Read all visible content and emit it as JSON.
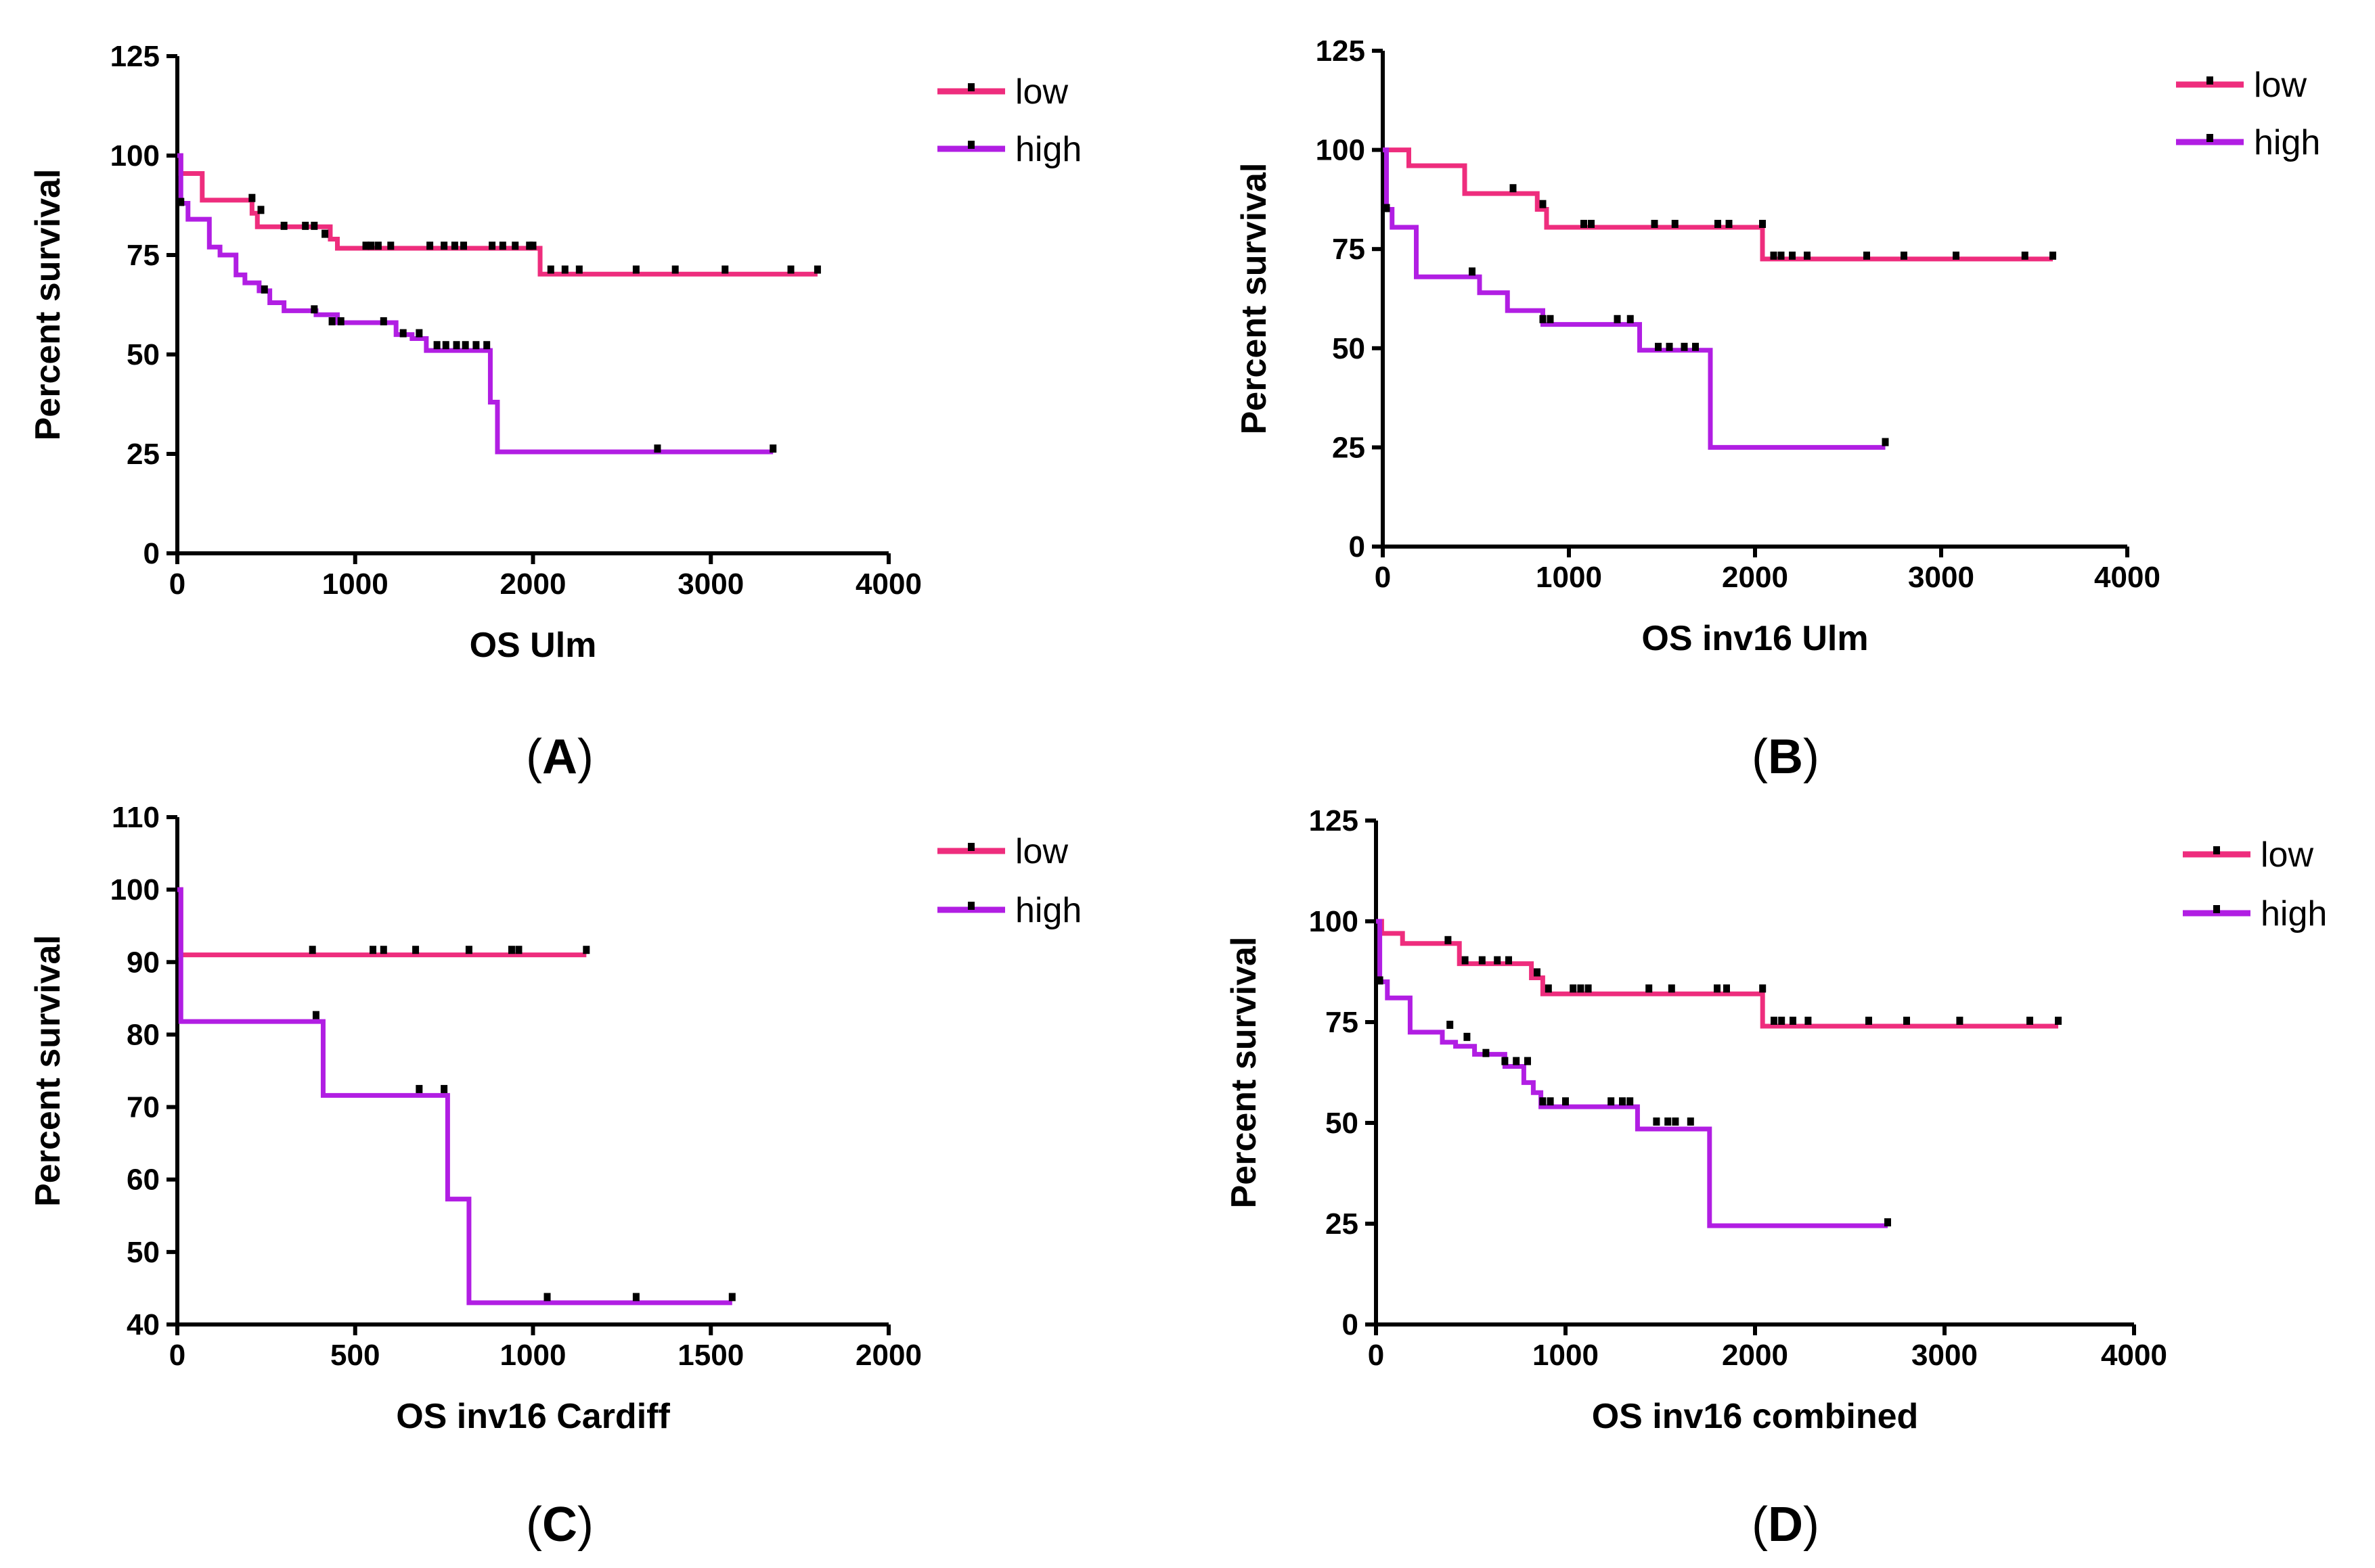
{
  "colors": {
    "low": "#ee2d7d",
    "high": "#b11ee3",
    "axis": "#000000",
    "censor": "#000000"
  },
  "chart_data": [
    {
      "type": "line",
      "panel": "A",
      "xlabel": "OS Ulm",
      "ylabel": "Percent survival",
      "xlim": [
        0,
        4000
      ],
      "ylim": [
        0,
        125
      ],
      "xticks": [
        0,
        1000,
        2000,
        3000,
        4000
      ],
      "yticks": [
        0,
        25,
        50,
        75,
        100,
        125
      ],
      "legend": {
        "placement": "top-right",
        "entries": [
          "low",
          "high"
        ]
      },
      "series": [
        {
          "name": "low",
          "steps": [
            [
              0,
              100
            ],
            [
              20,
              95.5
            ],
            [
              140,
              88.8
            ],
            [
              420,
              85.5
            ],
            [
              450,
              82.1
            ],
            [
              860,
              79.0
            ],
            [
              900,
              76.7
            ],
            [
              2040,
              70.2
            ],
            [
              3600,
              70.2
            ]
          ],
          "censored": [
            [
              420,
              89
            ],
            [
              470,
              86
            ],
            [
              600,
              82
            ],
            [
              720,
              82
            ],
            [
              770,
              82
            ],
            [
              830,
              80
            ],
            [
              1060,
              77
            ],
            [
              1090,
              77
            ],
            [
              1130,
              77
            ],
            [
              1200,
              77
            ],
            [
              1420,
              77
            ],
            [
              1500,
              77
            ],
            [
              1560,
              77
            ],
            [
              1610,
              77
            ],
            [
              1770,
              77
            ],
            [
              1830,
              77
            ],
            [
              1900,
              77
            ],
            [
              1980,
              77
            ],
            [
              2000,
              77
            ],
            [
              2100,
              71
            ],
            [
              2180,
              71
            ],
            [
              2260,
              71
            ],
            [
              2580,
              71
            ],
            [
              2800,
              71
            ],
            [
              3080,
              71
            ],
            [
              3450,
              71
            ],
            [
              3600,
              71
            ]
          ]
        },
        {
          "name": "high",
          "steps": [
            [
              0,
              100
            ],
            [
              20,
              88
            ],
            [
              60,
              84
            ],
            [
              180,
              77
            ],
            [
              240,
              75
            ],
            [
              330,
              70
            ],
            [
              380,
              68
            ],
            [
              460,
              66
            ],
            [
              520,
              63
            ],
            [
              600,
              61
            ],
            [
              780,
              60
            ],
            [
              900,
              58
            ],
            [
              1230,
              55
            ],
            [
              1320,
              54
            ],
            [
              1400,
              51
            ],
            [
              1760,
              38
            ],
            [
              1800,
              25.5
            ],
            [
              3350,
              25.5
            ]
          ],
          "censored": [
            [
              20,
              88
            ],
            [
              490,
              66
            ],
            [
              770,
              61
            ],
            [
              870,
              58
            ],
            [
              920,
              58
            ],
            [
              1160,
              58
            ],
            [
              1270,
              55
            ],
            [
              1360,
              55
            ],
            [
              1460,
              52
            ],
            [
              1510,
              52
            ],
            [
              1570,
              52
            ],
            [
              1620,
              52
            ],
            [
              1680,
              52
            ],
            [
              1740,
              52
            ],
            [
              2700,
              26
            ],
            [
              3350,
              26
            ]
          ]
        }
      ]
    },
    {
      "type": "line",
      "panel": "B",
      "xlabel": "OS inv16 Ulm",
      "ylabel": "Percent survival",
      "xlim": [
        0,
        4000
      ],
      "ylim": [
        0,
        125
      ],
      "xticks": [
        0,
        1000,
        2000,
        3000,
        4000
      ],
      "yticks": [
        0,
        25,
        50,
        75,
        100,
        125
      ],
      "legend": {
        "placement": "top-right",
        "entries": [
          "low",
          "high"
        ]
      },
      "series": [
        {
          "name": "low",
          "steps": [
            [
              0,
              100
            ],
            [
              140,
              96
            ],
            [
              440,
              89
            ],
            [
              830,
              85
            ],
            [
              880,
              80.5
            ],
            [
              2040,
              72.5
            ],
            [
              3600,
              72.5
            ]
          ],
          "censored": [
            [
              700,
              90
            ],
            [
              860,
              86
            ],
            [
              1080,
              81
            ],
            [
              1120,
              81
            ],
            [
              1460,
              81
            ],
            [
              1570,
              81
            ],
            [
              1800,
              81
            ],
            [
              1860,
              81
            ],
            [
              2040,
              81
            ],
            [
              2100,
              73
            ],
            [
              2140,
              73
            ],
            [
              2200,
              73
            ],
            [
              2280,
              73
            ],
            [
              2600,
              73
            ],
            [
              2800,
              73
            ],
            [
              3080,
              73
            ],
            [
              3450,
              73
            ],
            [
              3600,
              73
            ]
          ]
        },
        {
          "name": "high",
          "steps": [
            [
              0,
              100
            ],
            [
              20,
              85
            ],
            [
              50,
              80.5
            ],
            [
              180,
              68
            ],
            [
              520,
              64
            ],
            [
              670,
              59.5
            ],
            [
              860,
              56
            ],
            [
              1380,
              49.5
            ],
            [
              1760,
              25
            ],
            [
              2700,
              25
            ]
          ],
          "censored": [
            [
              20,
              85
            ],
            [
              480,
              69
            ],
            [
              860,
              57
            ],
            [
              900,
              57
            ],
            [
              1260,
              57
            ],
            [
              1330,
              57
            ],
            [
              1480,
              50
            ],
            [
              1540,
              50
            ],
            [
              1620,
              50
            ],
            [
              1680,
              50
            ],
            [
              2700,
              26
            ]
          ]
        }
      ]
    },
    {
      "type": "line",
      "panel": "C",
      "xlabel": "OS inv16 Cardiff",
      "ylabel": "Percent survival",
      "xlim": [
        0,
        2000
      ],
      "ylim": [
        40,
        110
      ],
      "xticks": [
        0,
        500,
        1000,
        1500,
        2000
      ],
      "yticks": [
        40,
        50,
        60,
        70,
        80,
        90,
        100,
        110
      ],
      "legend": {
        "placement": "top-right",
        "entries": [
          "low",
          "high"
        ]
      },
      "series": [
        {
          "name": "low",
          "steps": [
            [
              0,
              100
            ],
            [
              10,
              91
            ],
            [
              1150,
              91
            ]
          ],
          "censored": [
            [
              380,
              91.5
            ],
            [
              550,
              91.5
            ],
            [
              580,
              91.5
            ],
            [
              670,
              91.5
            ],
            [
              820,
              91.5
            ],
            [
              940,
              91.5
            ],
            [
              960,
              91.5
            ],
            [
              1150,
              91.5
            ]
          ]
        },
        {
          "name": "high",
          "steps": [
            [
              0,
              100
            ],
            [
              10,
              81.8
            ],
            [
              410,
              71.6
            ],
            [
              760,
              57.3
            ],
            [
              820,
              43
            ],
            [
              1560,
              43
            ]
          ],
          "censored": [
            [
              390,
              82.5
            ],
            [
              680,
              72.3
            ],
            [
              750,
              72.3
            ],
            [
              1040,
              43.6
            ],
            [
              1290,
              43.6
            ],
            [
              1560,
              43.6
            ]
          ]
        }
      ]
    },
    {
      "type": "line",
      "panel": "D",
      "xlabel": "OS inv16 combined",
      "ylabel": "Percent survival",
      "xlim": [
        0,
        4000
      ],
      "ylim": [
        0,
        125
      ],
      "xticks": [
        0,
        1000,
        2000,
        3000,
        4000
      ],
      "yticks": [
        0,
        25,
        50,
        75,
        100,
        125
      ],
      "legend": {
        "placement": "top-right",
        "entries": [
          "low",
          "high"
        ]
      },
      "series": [
        {
          "name": "low",
          "steps": [
            [
              0,
              100
            ],
            [
              30,
              97
            ],
            [
              140,
              94.5
            ],
            [
              440,
              89.5
            ],
            [
              820,
              86
            ],
            [
              880,
              82
            ],
            [
              2040,
              74
            ],
            [
              3600,
              74
            ]
          ],
          "censored": [
            [
              380,
              95
            ],
            [
              470,
              90
            ],
            [
              560,
              90
            ],
            [
              640,
              90
            ],
            [
              700,
              90
            ],
            [
              850,
              87
            ],
            [
              910,
              83
            ],
            [
              1040,
              83
            ],
            [
              1080,
              83
            ],
            [
              1120,
              83
            ],
            [
              1440,
              83
            ],
            [
              1560,
              83
            ],
            [
              1800,
              83
            ],
            [
              1850,
              83
            ],
            [
              2040,
              83
            ],
            [
              2100,
              75
            ],
            [
              2140,
              75
            ],
            [
              2200,
              75
            ],
            [
              2280,
              75
            ],
            [
              2600,
              75
            ],
            [
              2800,
              75
            ],
            [
              3080,
              75
            ],
            [
              3450,
              75
            ],
            [
              3600,
              75
            ]
          ]
        },
        {
          "name": "high",
          "steps": [
            [
              0,
              100
            ],
            [
              20,
              85
            ],
            [
              60,
              81
            ],
            [
              180,
              72.5
            ],
            [
              350,
              70
            ],
            [
              420,
              69
            ],
            [
              520,
              67
            ],
            [
              680,
              64
            ],
            [
              780,
              60
            ],
            [
              830,
              57.5
            ],
            [
              870,
              54
            ],
            [
              1380,
              48.5
            ],
            [
              1760,
              24.5
            ],
            [
              2700,
              24.5
            ]
          ],
          "censored": [
            [
              20,
              85
            ],
            [
              390,
              74
            ],
            [
              480,
              71
            ],
            [
              580,
              67
            ],
            [
              680,
              65
            ],
            [
              740,
              65
            ],
            [
              800,
              65
            ],
            [
              880,
              55
            ],
            [
              920,
              55
            ],
            [
              1000,
              55
            ],
            [
              1240,
              55
            ],
            [
              1300,
              55
            ],
            [
              1340,
              55
            ],
            [
              1480,
              50
            ],
            [
              1540,
              50
            ],
            [
              1580,
              50
            ],
            [
              1660,
              50
            ],
            [
              2700,
              25
            ]
          ]
        }
      ]
    }
  ]
}
